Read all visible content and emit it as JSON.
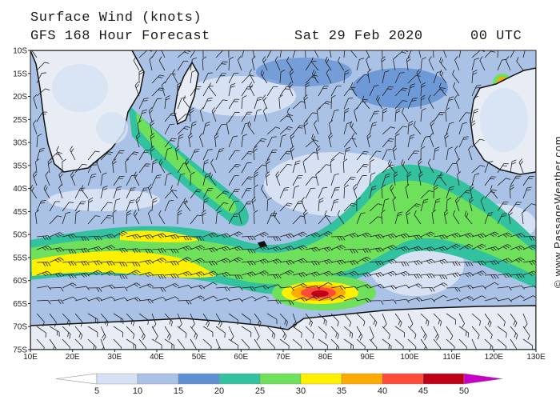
{
  "header": {
    "title": "Surface Wind (knots)",
    "subtitle": "GFS 168 Hour Forecast",
    "date": "Sat 29 Feb 2020",
    "time": "00 UTC"
  },
  "map": {
    "lat_labels": [
      "10S",
      "15S",
      "20S",
      "25S",
      "30S",
      "35S",
      "40S",
      "45S",
      "50S",
      "55S",
      "60S",
      "65S",
      "70S",
      "75S"
    ],
    "lon_labels": [
      "10E",
      "20E",
      "30E",
      "40E",
      "50E",
      "60E",
      "70E",
      "80E",
      "90E",
      "100E",
      "110E",
      "120E",
      "130E"
    ],
    "region": {
      "lon": [
        10,
        130
      ],
      "lat": [
        -10,
        -75
      ]
    }
  },
  "colorbar": {
    "labels": [
      "5",
      "10",
      "15",
      "20",
      "25",
      "30",
      "35",
      "40",
      "45",
      "50"
    ],
    "colors": [
      "#ffffff",
      "#d6e2f4",
      "#a9c2e6",
      "#5f8fd3",
      "#33c2a0",
      "#6fe05c",
      "#fff000",
      "#ffaa00",
      "#ff4a3a",
      "#c00018",
      "#c800c8"
    ]
  },
  "credit": "© www.PassageWeather.com"
}
